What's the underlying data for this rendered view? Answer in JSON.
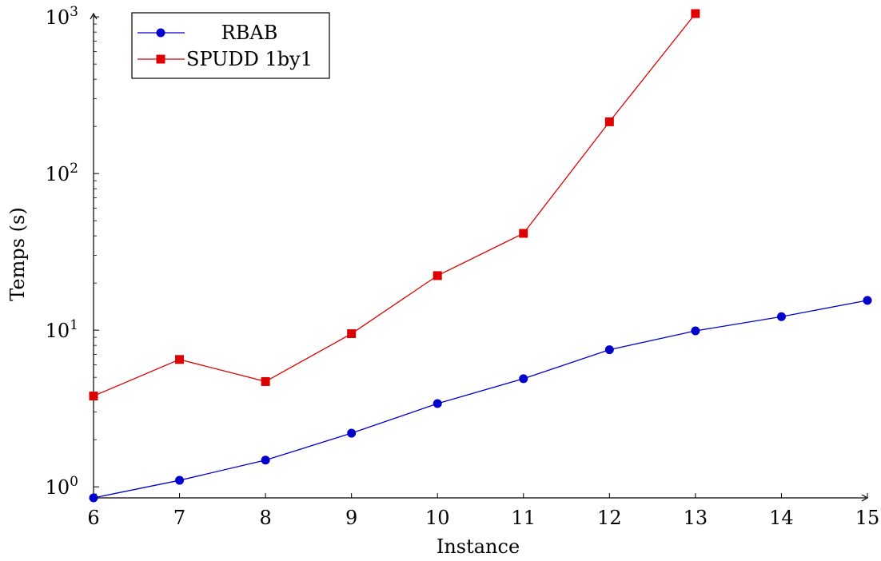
{
  "chart_data": {
    "type": "line",
    "xlabel": "Instance",
    "ylabel": "Temps (s)",
    "x_ticks": [
      6,
      7,
      8,
      9,
      10,
      11,
      12,
      13,
      14,
      15
    ],
    "x_tick_labels": [
      "6",
      "7",
      "8",
      "9",
      "10",
      "11",
      "12",
      "13",
      "14",
      "15"
    ],
    "xlim": [
      6,
      15
    ],
    "yscale": "log",
    "ylim": [
      0.85,
      1050
    ],
    "y_ticks": [
      {
        "value": 1,
        "base": "10",
        "exp": "0"
      },
      {
        "value": 10,
        "base": "10",
        "exp": "1"
      },
      {
        "value": 100,
        "base": "10",
        "exp": "2"
      },
      {
        "value": 1000,
        "base": "10",
        "exp": "3"
      }
    ],
    "grid": false,
    "legend_position": "top-left",
    "series": [
      {
        "name": "RBAB",
        "color": "#0000cc",
        "marker": "circle",
        "x": [
          6,
          7,
          8,
          9,
          10,
          11,
          12,
          13,
          14,
          15
        ],
        "y": [
          0.85,
          1.1,
          1.48,
          2.2,
          3.4,
          4.9,
          7.5,
          9.9,
          12.2,
          15.5
        ]
      },
      {
        "name": "SPUDD 1by1",
        "color": "#dd0000",
        "marker": "square",
        "x": [
          6,
          7,
          8,
          9,
          10,
          11,
          12,
          13
        ],
        "y": [
          3.8,
          6.5,
          4.7,
          9.5,
          22.3,
          41.5,
          214,
          1050
        ]
      }
    ]
  }
}
